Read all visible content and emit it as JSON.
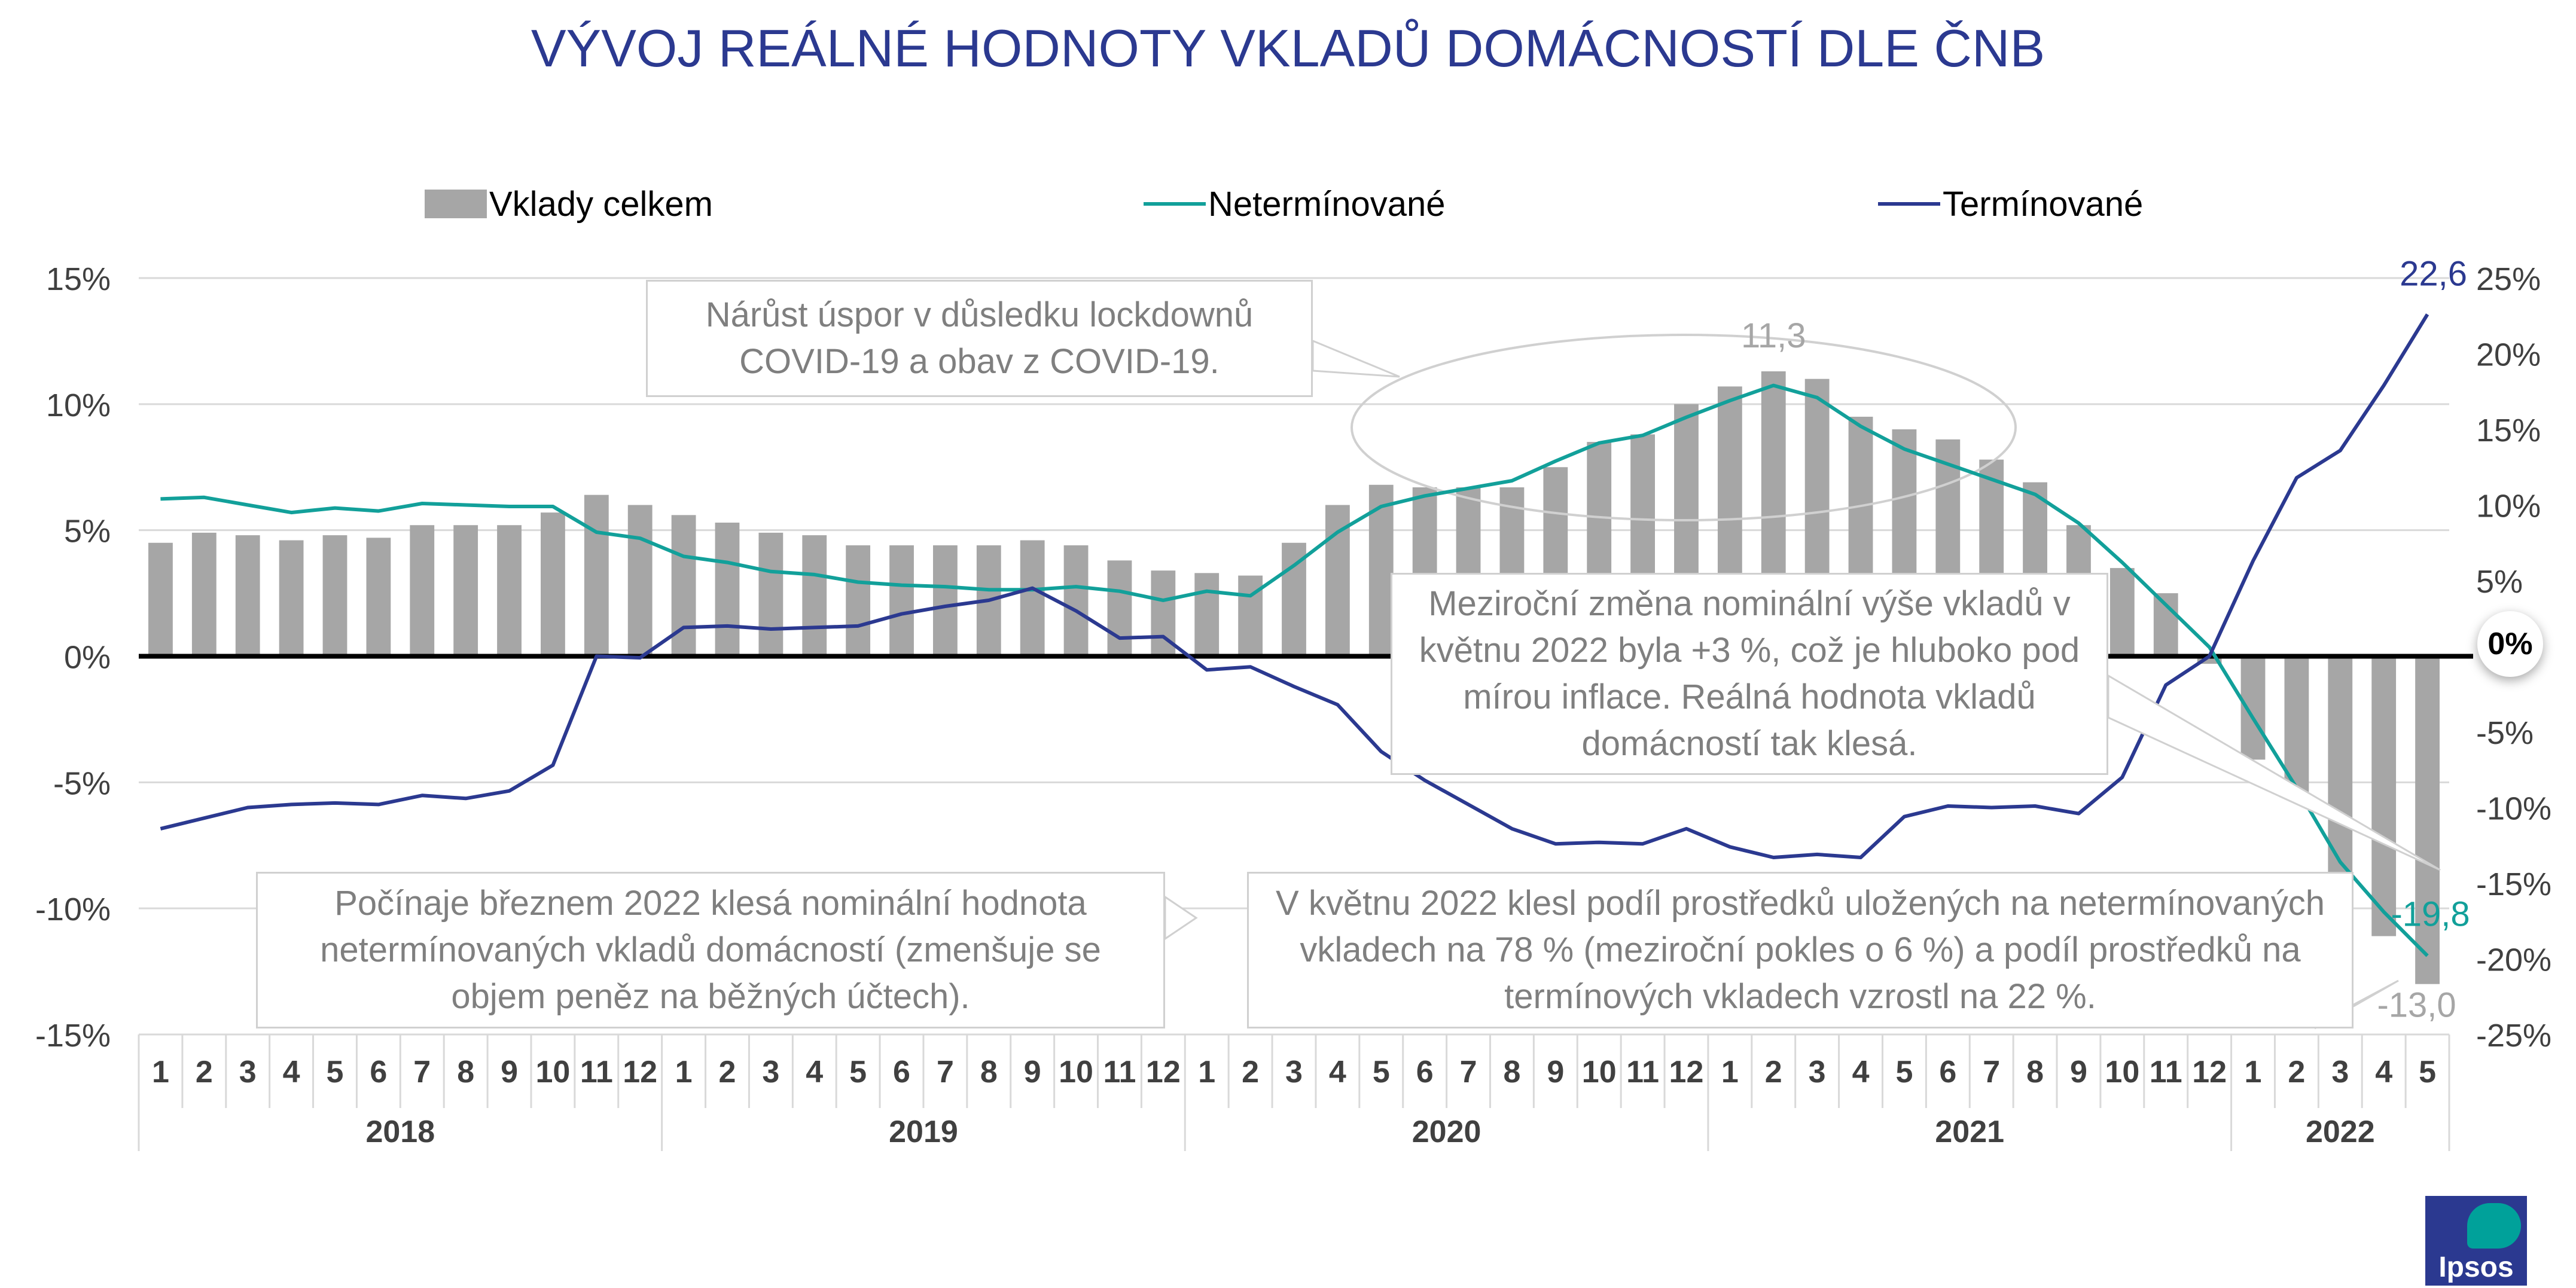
{
  "title": "VÝVOJ REÁLNÉ HODNOTY VKLADŮ DOMÁCNOSTÍ DLE ČNB",
  "legend": {
    "bars": "Vklady celkem",
    "neterminovane": "Netermínované",
    "terminovane": "Termínované"
  },
  "colors": {
    "title": "#2B3990",
    "bars": "#A6A6A6",
    "neterminovane": "#12A09A",
    "terminovane": "#2B3990",
    "grid": "#D9D9D9",
    "callout_text": "#7F7F7F"
  },
  "callouts": {
    "covid": "Nárůst úspor v důsledku lockdownů COVID-19 a obav z COVID-19.",
    "nominal": "Meziroční změna nominální výše vkladů v květnu 2022 byla +3 %, což je hluboko pod mírou inflace. Reálná hodnota vkladů domácností tak klesá.",
    "march": "Počínaje březnem 2022 klesá nominální hodnota netermínovaných vkladů domácností (zmenšuje se objem peněz na běžných účtech).",
    "may": "V květnu 2022 klesl podíl prostředků uložených na netermínovaných vkladech na 78 % (meziroční pokles o 6 %) a podíl prostředků na termínových vkladech vzrostl na 22 %."
  },
  "zero_badge": "0%",
  "logo_text": "Ipsos",
  "chart_data": {
    "type": "bar",
    "categories": [
      "1",
      "2",
      "3",
      "4",
      "5",
      "6",
      "7",
      "8",
      "9",
      "10",
      "11",
      "12",
      "1",
      "2",
      "3",
      "4",
      "5",
      "6",
      "7",
      "8",
      "9",
      "10",
      "11",
      "12",
      "1",
      "2",
      "3",
      "4",
      "5",
      "6",
      "7",
      "8",
      "9",
      "10",
      "11",
      "12",
      "1",
      "2",
      "3",
      "4",
      "5",
      "6",
      "7",
      "8",
      "9",
      "10",
      "11",
      "12",
      "1",
      "2",
      "3",
      "4",
      "5"
    ],
    "years": [
      {
        "label": "2018",
        "months": 12
      },
      {
        "label": "2019",
        "months": 12
      },
      {
        "label": "2020",
        "months": 12
      },
      {
        "label": "2021",
        "months": 12
      },
      {
        "label": "2022",
        "months": 5
      }
    ],
    "y_left": {
      "ticks": [
        "15%",
        "10%",
        "5%",
        "0%",
        "-5%",
        "-10%",
        "-15%"
      ],
      "range": [
        -15,
        15
      ]
    },
    "y_right": {
      "ticks": [
        "25%",
        "20%",
        "15%",
        "10%",
        "5%",
        "",
        "-5%",
        "-10%",
        "-15%",
        "-20%",
        "-25%"
      ],
      "range": [
        -25,
        25
      ]
    },
    "series": [
      {
        "name": "Vklady celkem",
        "kind": "bar",
        "axis": "left",
        "values": [
          4.5,
          4.9,
          4.8,
          4.6,
          4.8,
          4.7,
          5.2,
          5.2,
          5.2,
          5.7,
          6.4,
          6.0,
          5.6,
          5.3,
          4.9,
          4.8,
          4.4,
          4.4,
          4.4,
          4.4,
          4.6,
          4.4,
          3.8,
          3.4,
          3.3,
          3.2,
          4.5,
          6.0,
          6.8,
          6.7,
          6.7,
          6.7,
          7.5,
          8.5,
          8.8,
          10.0,
          10.7,
          11.3,
          11.0,
          9.5,
          9.0,
          8.6,
          7.8,
          6.9,
          5.2,
          3.5,
          2.5,
          -0.3,
          -4.1,
          -5.5,
          -9.3,
          -11.1,
          -13.0
        ]
      },
      {
        "name": "Netermínované",
        "kind": "line",
        "axis": "right",
        "values": [
          10.4,
          10.5,
          10.0,
          9.5,
          9.8,
          9.6,
          10.1,
          10.0,
          9.9,
          9.9,
          8.2,
          7.8,
          6.6,
          6.2,
          5.6,
          5.4,
          4.9,
          4.7,
          4.6,
          4.4,
          4.4,
          4.6,
          4.3,
          3.7,
          4.3,
          4.0,
          6.0,
          8.2,
          9.9,
          10.6,
          11.1,
          11.6,
          12.9,
          14.1,
          14.6,
          15.8,
          16.9,
          17.9,
          17.1,
          15.2,
          13.7,
          12.7,
          11.7,
          10.7,
          8.8,
          6.2,
          3.4,
          0.6,
          -4.1,
          -8.7,
          -13.6,
          -16.9,
          -19.8
        ]
      },
      {
        "name": "Termínované",
        "kind": "line",
        "axis": "right",
        "values": [
          -11.4,
          -10.7,
          -10.0,
          -9.8,
          -9.7,
          -9.8,
          -9.2,
          -9.4,
          -8.9,
          -7.2,
          0.0,
          -0.1,
          1.9,
          2.0,
          1.8,
          1.9,
          2.0,
          2.8,
          3.3,
          3.7,
          4.5,
          3.0,
          1.2,
          1.3,
          -0.9,
          -0.7,
          -2.0,
          -3.2,
          -6.3,
          -8.2,
          -9.8,
          -11.4,
          -12.4,
          -12.3,
          -12.4,
          -11.4,
          -12.6,
          -13.3,
          -13.1,
          -13.3,
          -10.6,
          -9.9,
          -10.0,
          -9.9,
          -10.4,
          -8.0,
          -1.9,
          0.0,
          6.3,
          11.8,
          13.6,
          17.9,
          22.6
        ]
      }
    ],
    "data_labels": {
      "bar_peak": "11,3",
      "bar_last": "-13,0",
      "neterminovane_last": "-19,8",
      "terminovane_last": "22,6"
    }
  }
}
